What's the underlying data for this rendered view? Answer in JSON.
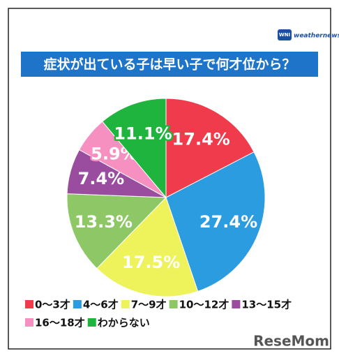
{
  "logo_badge": "WNI",
  "logo": "weathernews",
  "watermark": "ReseMom",
  "chart_data": {
    "type": "pie",
    "title": "症状が出ている子は早い子で何才位から？",
    "categories": [
      "0〜3才",
      "4〜6才",
      "7〜9才",
      "10〜12才",
      "13〜15才",
      "16〜18才",
      "わからない"
    ],
    "values": [
      17.4,
      27.4,
      17.5,
      13.3,
      7.4,
      5.9,
      11.1
    ],
    "value_labels": [
      "17.4%",
      "27.4%",
      "17.5%",
      "13.3%",
      "7.4%",
      "5.9%",
      "11.1%"
    ],
    "colors": [
      "#ef3b4b",
      "#2b9ce0",
      "#eef35c",
      "#8ec866",
      "#9a4d9f",
      "#f590c1",
      "#1fb43d"
    ]
  }
}
